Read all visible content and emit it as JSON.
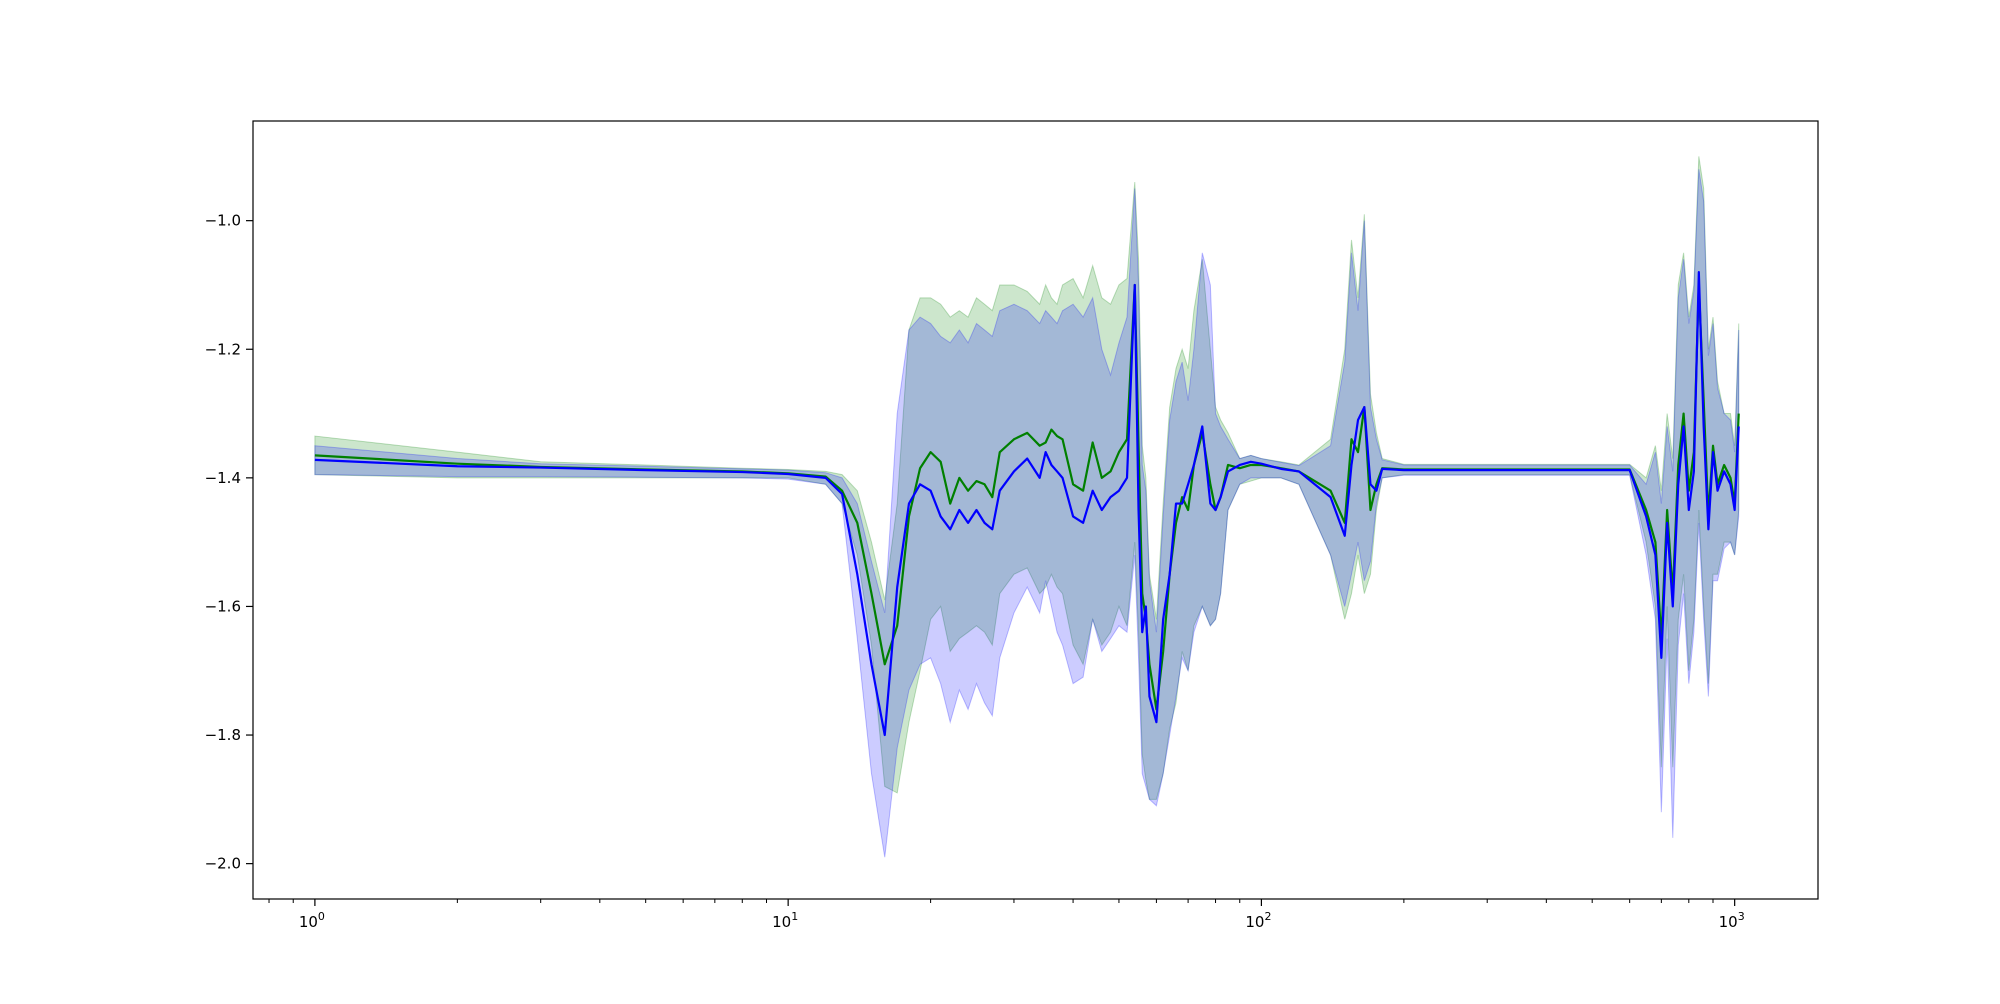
{
  "chart_data": {
    "type": "line",
    "title": "",
    "xlabel": "",
    "ylabel": "",
    "xscale": "log",
    "xlim": [
      0.74,
      1500
    ],
    "ylim": [
      -2.055,
      -0.845
    ],
    "grid": false,
    "legend": "none",
    "x_ticks": [
      {
        "value": 1,
        "base": "10",
        "exp": "0"
      },
      {
        "value": 10,
        "base": "10",
        "exp": "1"
      },
      {
        "value": 100,
        "base": "10",
        "exp": "2"
      },
      {
        "value": 1000,
        "base": "10",
        "exp": "3"
      }
    ],
    "y_ticks": [
      {
        "value": -2.0,
        "label": "−2.0"
      },
      {
        "value": -1.8,
        "label": "−1.8"
      },
      {
        "value": -1.6,
        "label": "−1.6"
      },
      {
        "value": -1.4,
        "label": "−1.4"
      },
      {
        "value": -1.2,
        "label": "−1.2"
      },
      {
        "value": -1.0,
        "label": "−1.0"
      }
    ],
    "series": [
      {
        "color": "#008000",
        "band_color": "#008000",
        "x": [
          1,
          2,
          3,
          5,
          8,
          10,
          12,
          13,
          14,
          15,
          16,
          17,
          18,
          19,
          20,
          21,
          22,
          23,
          24,
          25,
          26,
          27,
          28,
          30,
          32,
          34,
          35,
          36,
          37,
          38,
          40,
          42,
          44,
          46,
          48,
          50,
          52,
          54,
          55,
          56,
          57,
          58,
          60,
          62,
          64,
          66,
          68,
          70,
          72,
          75,
          78,
          80,
          82,
          85,
          90,
          95,
          100,
          110,
          120,
          140,
          150,
          155,
          160,
          165,
          170,
          175,
          180,
          200,
          300,
          400,
          470,
          500,
          600,
          650,
          680,
          700,
          720,
          740,
          760,
          780,
          800,
          820,
          840,
          860,
          880,
          900,
          920,
          950,
          980,
          1000,
          1020
        ],
        "y": [
          -1.365,
          -1.378,
          -1.383,
          -1.387,
          -1.39,
          -1.393,
          -1.398,
          -1.42,
          -1.47,
          -1.58,
          -1.69,
          -1.63,
          -1.46,
          -1.385,
          -1.36,
          -1.375,
          -1.44,
          -1.4,
          -1.42,
          -1.405,
          -1.41,
          -1.43,
          -1.36,
          -1.34,
          -1.33,
          -1.35,
          -1.345,
          -1.325,
          -1.335,
          -1.34,
          -1.41,
          -1.42,
          -1.345,
          -1.4,
          -1.39,
          -1.36,
          -1.34,
          -1.1,
          -1.35,
          -1.58,
          -1.62,
          -1.69,
          -1.76,
          -1.67,
          -1.55,
          -1.47,
          -1.43,
          -1.45,
          -1.38,
          -1.33,
          -1.41,
          -1.45,
          -1.43,
          -1.38,
          -1.385,
          -1.38,
          -1.38,
          -1.385,
          -1.39,
          -1.42,
          -1.47,
          -1.34,
          -1.36,
          -1.29,
          -1.45,
          -1.41,
          -1.385,
          -1.387,
          -1.387,
          -1.387,
          -1.387,
          -1.387,
          -1.387,
          -1.45,
          -1.5,
          -1.65,
          -1.45,
          -1.58,
          -1.38,
          -1.3,
          -1.42,
          -1.36,
          -1.1,
          -1.28,
          -1.46,
          -1.35,
          -1.41,
          -1.38,
          -1.4,
          -1.44,
          -1.3
        ],
        "lower": [
          -1.395,
          -1.4,
          -1.4,
          -1.4,
          -1.4,
          -1.4,
          -1.41,
          -1.44,
          -1.52,
          -1.66,
          -1.88,
          -1.89,
          -1.78,
          -1.7,
          -1.62,
          -1.6,
          -1.67,
          -1.65,
          -1.64,
          -1.63,
          -1.64,
          -1.66,
          -1.58,
          -1.55,
          -1.54,
          -1.58,
          -1.57,
          -1.55,
          -1.57,
          -1.58,
          -1.66,
          -1.69,
          -1.62,
          -1.66,
          -1.64,
          -1.6,
          -1.63,
          -1.5,
          -1.64,
          -1.83,
          -1.87,
          -1.9,
          -1.9,
          -1.86,
          -1.79,
          -1.75,
          -1.67,
          -1.7,
          -1.63,
          -1.6,
          -1.63,
          -1.62,
          -1.58,
          -1.45,
          -1.41,
          -1.405,
          -1.4,
          -1.4,
          -1.41,
          -1.52,
          -1.62,
          -1.58,
          -1.52,
          -1.58,
          -1.55,
          -1.45,
          -1.4,
          -1.395,
          -1.395,
          -1.395,
          -1.395,
          -1.395,
          -1.395,
          -1.5,
          -1.6,
          -1.85,
          -1.6,
          -1.85,
          -1.62,
          -1.55,
          -1.7,
          -1.62,
          -1.45,
          -1.6,
          -1.72,
          -1.55,
          -1.55,
          -1.5,
          -1.5,
          -1.52,
          -1.45
        ],
        "upper": [
          -1.335,
          -1.36,
          -1.375,
          -1.38,
          -1.385,
          -1.387,
          -1.39,
          -1.395,
          -1.42,
          -1.5,
          -1.59,
          -1.44,
          -1.17,
          -1.12,
          -1.12,
          -1.13,
          -1.15,
          -1.14,
          -1.15,
          -1.12,
          -1.13,
          -1.14,
          -1.1,
          -1.1,
          -1.11,
          -1.13,
          -1.1,
          -1.12,
          -1.13,
          -1.1,
          -1.09,
          -1.12,
          -1.07,
          -1.12,
          -1.13,
          -1.1,
          -1.09,
          -0.94,
          -1.06,
          -1.35,
          -1.4,
          -1.55,
          -1.62,
          -1.44,
          -1.29,
          -1.23,
          -1.2,
          -1.23,
          -1.14,
          -1.06,
          -1.2,
          -1.29,
          -1.31,
          -1.33,
          -1.37,
          -1.365,
          -1.37,
          -1.375,
          -1.38,
          -1.34,
          -1.2,
          -1.03,
          -1.12,
          -0.99,
          -1.27,
          -1.33,
          -1.37,
          -1.379,
          -1.379,
          -1.379,
          -1.379,
          -1.379,
          -1.379,
          -1.4,
          -1.35,
          -1.42,
          -1.3,
          -1.37,
          -1.1,
          -1.05,
          -1.15,
          -1.1,
          -0.9,
          -0.95,
          -1.2,
          -1.15,
          -1.25,
          -1.3,
          -1.3,
          -1.35,
          -1.16
        ]
      },
      {
        "color": "#0000ff",
        "band_color": "#0000ff",
        "x": [
          1,
          2,
          3,
          5,
          8,
          10,
          12,
          13,
          14,
          15,
          16,
          17,
          18,
          19,
          20,
          21,
          22,
          23,
          24,
          25,
          26,
          27,
          28,
          30,
          32,
          34,
          35,
          36,
          37,
          38,
          40,
          42,
          44,
          46,
          48,
          50,
          52,
          54,
          55,
          56,
          57,
          58,
          60,
          62,
          64,
          66,
          68,
          70,
          72,
          75,
          78,
          80,
          82,
          85,
          90,
          95,
          100,
          110,
          120,
          140,
          150,
          155,
          160,
          165,
          170,
          175,
          180,
          200,
          300,
          400,
          470,
          500,
          600,
          650,
          680,
          700,
          720,
          740,
          760,
          780,
          800,
          820,
          840,
          860,
          880,
          900,
          920,
          950,
          980,
          1000,
          1020
        ],
        "y": [
          -1.372,
          -1.382,
          -1.384,
          -1.388,
          -1.391,
          -1.394,
          -1.4,
          -1.425,
          -1.55,
          -1.69,
          -1.8,
          -1.57,
          -1.44,
          -1.41,
          -1.42,
          -1.46,
          -1.48,
          -1.45,
          -1.47,
          -1.45,
          -1.47,
          -1.48,
          -1.42,
          -1.39,
          -1.37,
          -1.4,
          -1.36,
          -1.38,
          -1.39,
          -1.4,
          -1.46,
          -1.47,
          -1.42,
          -1.45,
          -1.43,
          -1.42,
          -1.4,
          -1.1,
          -1.45,
          -1.64,
          -1.6,
          -1.74,
          -1.78,
          -1.62,
          -1.55,
          -1.44,
          -1.44,
          -1.41,
          -1.38,
          -1.32,
          -1.44,
          -1.45,
          -1.43,
          -1.39,
          -1.38,
          -1.375,
          -1.378,
          -1.386,
          -1.39,
          -1.43,
          -1.49,
          -1.38,
          -1.31,
          -1.29,
          -1.41,
          -1.42,
          -1.386,
          -1.388,
          -1.388,
          -1.388,
          -1.388,
          -1.388,
          -1.388,
          -1.46,
          -1.52,
          -1.68,
          -1.47,
          -1.6,
          -1.41,
          -1.32,
          -1.45,
          -1.39,
          -1.08,
          -1.32,
          -1.48,
          -1.36,
          -1.42,
          -1.39,
          -1.41,
          -1.45,
          -1.32
        ],
        "lower": [
          -1.395,
          -1.398,
          -1.398,
          -1.399,
          -1.4,
          -1.402,
          -1.41,
          -1.44,
          -1.65,
          -1.86,
          -1.99,
          -1.82,
          -1.73,
          -1.69,
          -1.68,
          -1.72,
          -1.78,
          -1.73,
          -1.76,
          -1.72,
          -1.75,
          -1.77,
          -1.68,
          -1.61,
          -1.57,
          -1.61,
          -1.56,
          -1.6,
          -1.64,
          -1.66,
          -1.72,
          -1.71,
          -1.62,
          -1.67,
          -1.65,
          -1.63,
          -1.64,
          -1.52,
          -1.68,
          -1.86,
          -1.88,
          -1.9,
          -1.91,
          -1.86,
          -1.8,
          -1.74,
          -1.68,
          -1.7,
          -1.64,
          -1.6,
          -1.63,
          -1.62,
          -1.58,
          -1.45,
          -1.41,
          -1.4,
          -1.4,
          -1.4,
          -1.41,
          -1.52,
          -1.6,
          -1.55,
          -1.5,
          -1.56,
          -1.53,
          -1.44,
          -1.4,
          -1.396,
          -1.396,
          -1.396,
          -1.396,
          -1.396,
          -1.396,
          -1.52,
          -1.62,
          -1.92,
          -1.65,
          -1.96,
          -1.66,
          -1.58,
          -1.72,
          -1.64,
          -1.47,
          -1.62,
          -1.74,
          -1.56,
          -1.56,
          -1.51,
          -1.5,
          -1.52,
          -1.46
        ],
        "upper": [
          -1.35,
          -1.37,
          -1.378,
          -1.382,
          -1.386,
          -1.388,
          -1.392,
          -1.4,
          -1.44,
          -1.53,
          -1.61,
          -1.3,
          -1.17,
          -1.15,
          -1.16,
          -1.18,
          -1.19,
          -1.17,
          -1.19,
          -1.16,
          -1.17,
          -1.18,
          -1.14,
          -1.13,
          -1.14,
          -1.16,
          -1.14,
          -1.15,
          -1.16,
          -1.14,
          -1.13,
          -1.15,
          -1.12,
          -1.2,
          -1.24,
          -1.19,
          -1.15,
          -0.95,
          -1.1,
          -1.38,
          -1.42,
          -1.56,
          -1.64,
          -1.46,
          -1.31,
          -1.25,
          -1.22,
          -1.28,
          -1.2,
          -1.05,
          -1.1,
          -1.3,
          -1.32,
          -1.34,
          -1.37,
          -1.365,
          -1.37,
          -1.376,
          -1.381,
          -1.35,
          -1.22,
          -1.05,
          -1.14,
          -1.0,
          -1.29,
          -1.34,
          -1.372,
          -1.38,
          -1.38,
          -1.38,
          -1.38,
          -1.38,
          -1.38,
          -1.41,
          -1.36,
          -1.44,
          -1.32,
          -1.39,
          -1.12,
          -1.06,
          -1.16,
          -1.11,
          -0.92,
          -0.97,
          -1.21,
          -1.16,
          -1.26,
          -1.3,
          -1.31,
          -1.36,
          -1.17
        ]
      }
    ]
  }
}
